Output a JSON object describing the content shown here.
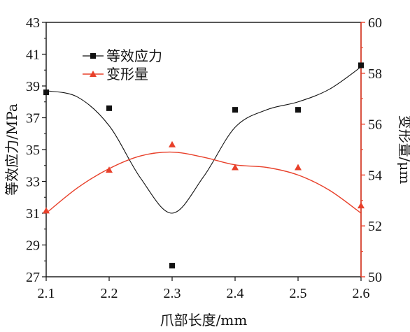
{
  "chart_data": {
    "type": "line",
    "xlabel": "爪部长度/mm",
    "x_ticks": [
      "2.1",
      "2.2",
      "2.3",
      "2.4",
      "2.5",
      "2.6"
    ],
    "xlim": [
      2.1,
      2.6
    ],
    "y_left": {
      "label": "等效应力/MPa",
      "lim": [
        27,
        43
      ],
      "ticks": [
        "27",
        "29",
        "31",
        "33",
        "35",
        "37",
        "39",
        "41",
        "43"
      ]
    },
    "y_right": {
      "label": "变形量/μm",
      "lim": [
        50,
        60
      ],
      "ticks": [
        "50",
        "52",
        "54",
        "56",
        "58",
        "60"
      ]
    },
    "legend": {
      "position": "top-left"
    },
    "series": [
      {
        "name": "等效应力",
        "axis": "left",
        "marker": "square",
        "color": "#111111",
        "x": [
          2.1,
          2.2,
          2.3,
          2.4,
          2.5,
          2.6
        ],
        "values": [
          38.6,
          37.6,
          27.7,
          37.5,
          37.5,
          40.3
        ],
        "fit_x": [
          2.1,
          2.15,
          2.2,
          2.25,
          2.3,
          2.35,
          2.4,
          2.45,
          2.5,
          2.55,
          2.6
        ],
        "fit": [
          38.7,
          38.3,
          36.5,
          33.2,
          31.0,
          33.3,
          36.4,
          37.5,
          38.0,
          38.8,
          40.2
        ]
      },
      {
        "name": "变形量",
        "axis": "right",
        "marker": "triangle",
        "color": "#e8402a",
        "x": [
          2.1,
          2.2,
          2.3,
          2.4,
          2.5,
          2.6
        ],
        "values": [
          52.6,
          54.2,
          55.2,
          54.3,
          54.3,
          52.8
        ],
        "fit_x": [
          2.1,
          2.15,
          2.2,
          2.25,
          2.3,
          2.35,
          2.4,
          2.45,
          2.5,
          2.55,
          2.6
        ],
        "fit": [
          52.5,
          53.5,
          54.25,
          54.75,
          54.9,
          54.7,
          54.4,
          54.3,
          54.0,
          53.4,
          52.5
        ]
      }
    ]
  }
}
